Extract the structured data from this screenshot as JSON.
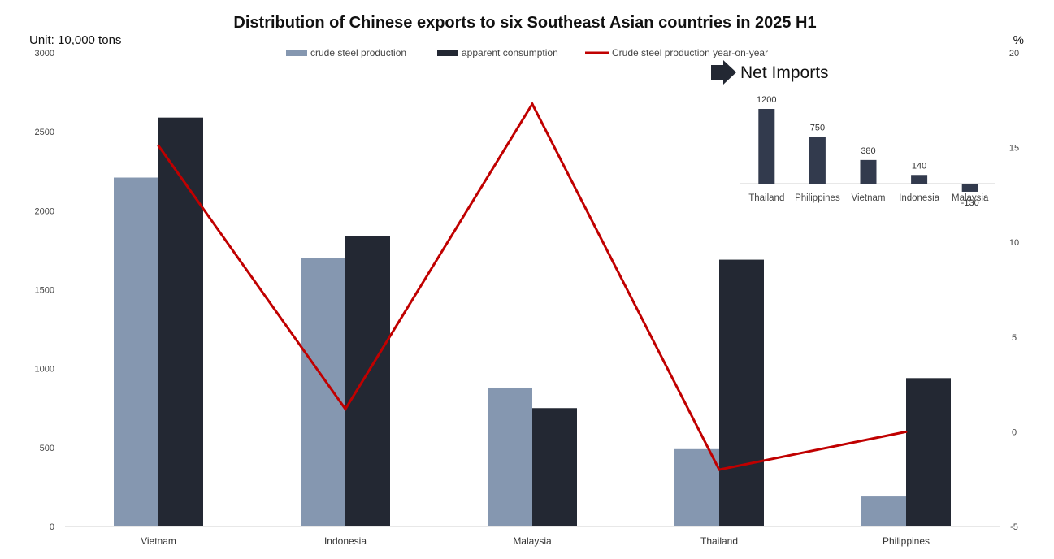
{
  "chart_data": {
    "type": "bar",
    "title": "Distribution of Chinese exports to six Southeast Asian countries in 2025 H1",
    "unit_left": "Unit: 10,000 tons",
    "unit_right": "%",
    "categories": [
      "Vietnam",
      "Indonesia",
      "Malaysia",
      "Thailand",
      "Philippines"
    ],
    "series": [
      {
        "name": "crude steel production",
        "type": "bar",
        "axis": "left",
        "color": "#8597b0",
        "values": [
          2210,
          1700,
          880,
          490,
          190
        ]
      },
      {
        "name": "apparent consumption",
        "type": "bar",
        "axis": "left",
        "color": "#232833",
        "values": [
          2590,
          1840,
          750,
          1690,
          940
        ]
      },
      {
        "name": "Crude steel production year-on-year",
        "type": "line",
        "axis": "right",
        "color": "#c00000",
        "values": [
          15.1,
          1.2,
          17.3,
          -2.0,
          0.0
        ]
      }
    ],
    "ylim_left": [
      0,
      3000
    ],
    "yticks_left": [
      0,
      500,
      1000,
      1500,
      2000,
      2500,
      3000
    ],
    "ylim_right": [
      -5,
      20
    ],
    "yticks_right": [
      -5,
      0,
      5,
      10,
      15,
      20
    ],
    "legend_position": "top-center",
    "grid": false,
    "inset": {
      "title": "Net Imports",
      "type": "bar",
      "color": "#323a4d",
      "categories": [
        "Thailand",
        "Philippines",
        "Vietnam",
        "Indonesia",
        "Malaysia"
      ],
      "values": [
        1200,
        750,
        380,
        140,
        -130
      ],
      "labels": [
        "1200",
        "750",
        "380",
        "140",
        "-130"
      ]
    }
  }
}
